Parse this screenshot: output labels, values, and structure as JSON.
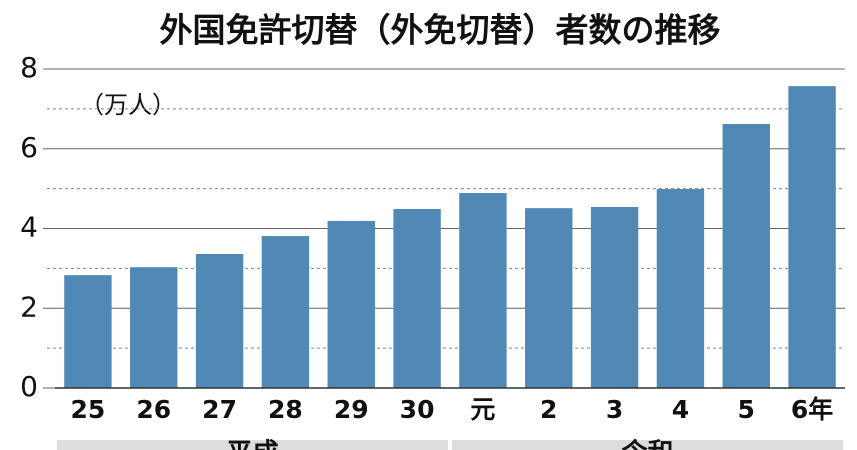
{
  "chart_data": {
    "type": "bar",
    "title": "外国免許切替（外免切替）者数の推移",
    "unit_label": "（万人）",
    "categories": [
      "25",
      "26",
      "27",
      "28",
      "29",
      "30",
      "元",
      "2",
      "3",
      "4",
      "5",
      "6年"
    ],
    "values": [
      2.83,
      3.03,
      3.36,
      3.81,
      4.19,
      4.49,
      4.89,
      4.51,
      4.54,
      4.99,
      6.62,
      7.57
    ],
    "color": "#5089b5",
    "ylim": [
      0,
      8
    ],
    "yticks": [
      0,
      2,
      4,
      6,
      8
    ],
    "grid": true,
    "groups": [
      {
        "label": "平成",
        "start": 0,
        "end": 5
      },
      {
        "label": "令和",
        "start": 6,
        "end": 11
      }
    ]
  }
}
